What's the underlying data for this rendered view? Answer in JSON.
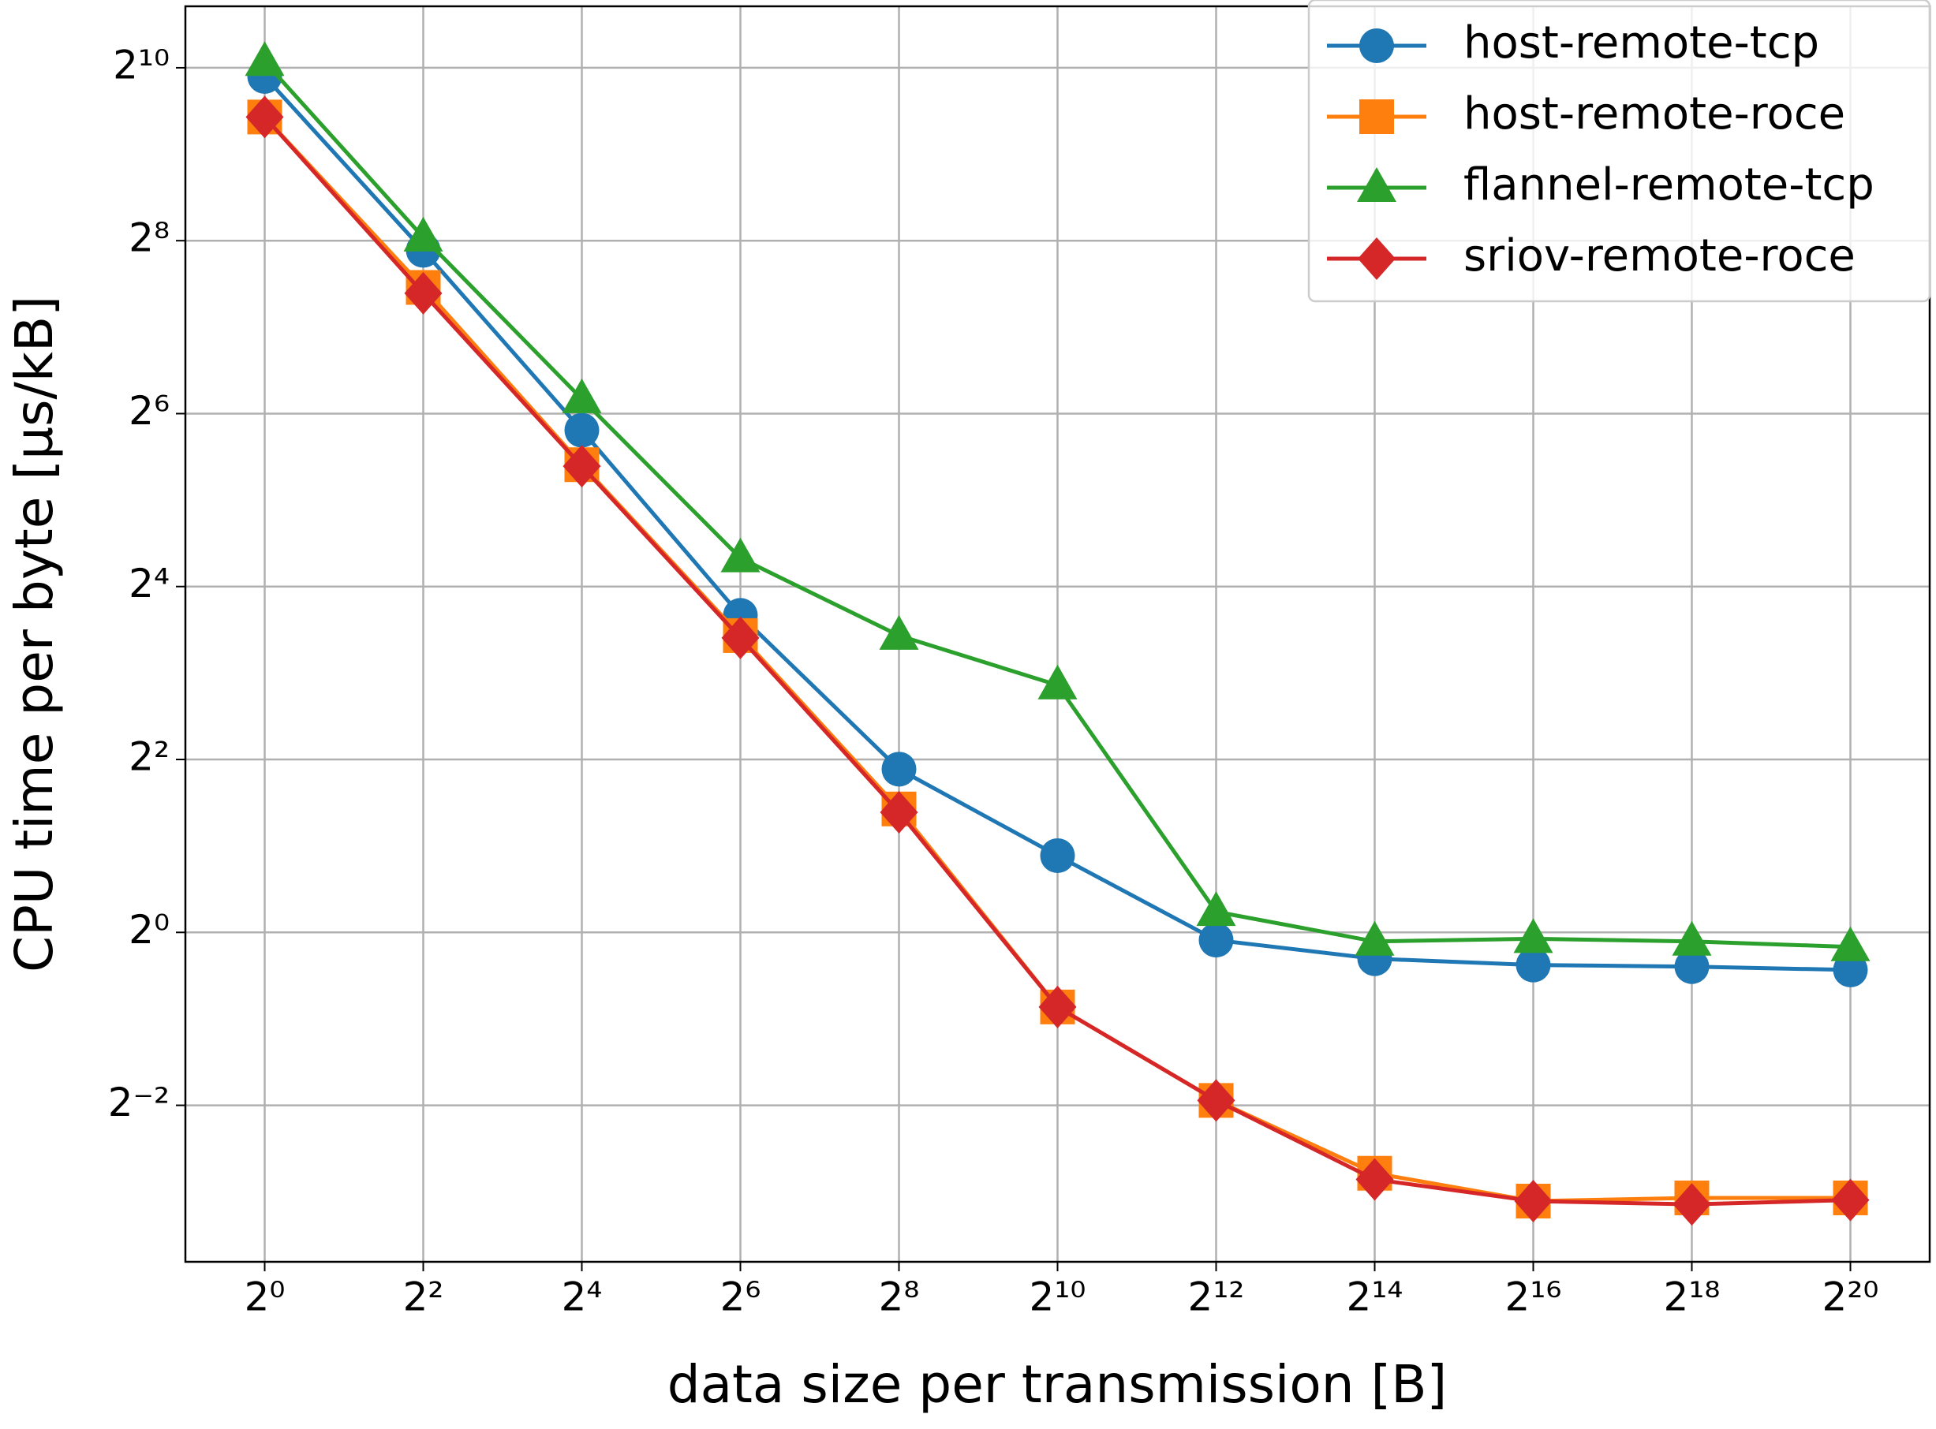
{
  "chart_data": {
    "type": "line",
    "xlabel": "data size per transmission [B]",
    "ylabel": "CPU time per byte [µs/kB]",
    "x": [
      1,
      4,
      16,
      64,
      256,
      1024,
      4096,
      16384,
      65536,
      262144,
      1048576
    ],
    "series": [
      {
        "name": "host-remote-tcp",
        "color": "#1f77b4",
        "marker": "circle",
        "values": [
          955,
          237,
          56,
          12.7,
          3.7,
          1.85,
          0.94,
          0.81,
          0.77,
          0.76,
          0.74
        ]
      },
      {
        "name": "host-remote-roce",
        "color": "#ff7f0e",
        "marker": "square",
        "values": [
          690,
          176,
          42.5,
          10.8,
          2.69,
          0.55,
          0.26,
          0.145,
          0.116,
          0.119,
          0.119
        ]
      },
      {
        "name": "flannel-remote-tcp",
        "color": "#2ca02c",
        "marker": "triangle",
        "values": [
          1075,
          263,
          72,
          20.1,
          10.8,
          7.26,
          1.18,
          0.93,
          0.95,
          0.93,
          0.89
        ]
      },
      {
        "name": "sriov-remote-roce",
        "color": "#d62728",
        "marker": "diamond",
        "values": [
          690,
          168,
          42,
          10.6,
          2.62,
          0.55,
          0.26,
          0.138,
          0.116,
          0.113,
          0.117
        ]
      }
    ],
    "xscale": "log2",
    "yscale": "log2",
    "xlim": [
      0.5,
      2097152
    ],
    "ylim": [
      0.0713,
      1676
    ],
    "xticks": [
      {
        "value": 1,
        "label": "2⁰"
      },
      {
        "value": 4,
        "label": "2²"
      },
      {
        "value": 16,
        "label": "2⁴"
      },
      {
        "value": 64,
        "label": "2⁶"
      },
      {
        "value": 256,
        "label": "2⁸"
      },
      {
        "value": 1024,
        "label": "2¹⁰"
      },
      {
        "value": 4096,
        "label": "2¹²"
      },
      {
        "value": 16384,
        "label": "2¹⁴"
      },
      {
        "value": 65536,
        "label": "2¹⁶"
      },
      {
        "value": 262144,
        "label": "2¹⁸"
      },
      {
        "value": 1048576,
        "label": "2²⁰"
      }
    ],
    "yticks": [
      {
        "value": 0.25,
        "label": "2⁻²"
      },
      {
        "value": 1,
        "label": "2⁰"
      },
      {
        "value": 4,
        "label": "2²"
      },
      {
        "value": 16,
        "label": "2⁴"
      },
      {
        "value": 64,
        "label": "2⁶"
      },
      {
        "value": 256,
        "label": "2⁸"
      },
      {
        "value": 1024,
        "label": "2¹⁰"
      }
    ],
    "grid": true,
    "legend": "upper right"
  }
}
